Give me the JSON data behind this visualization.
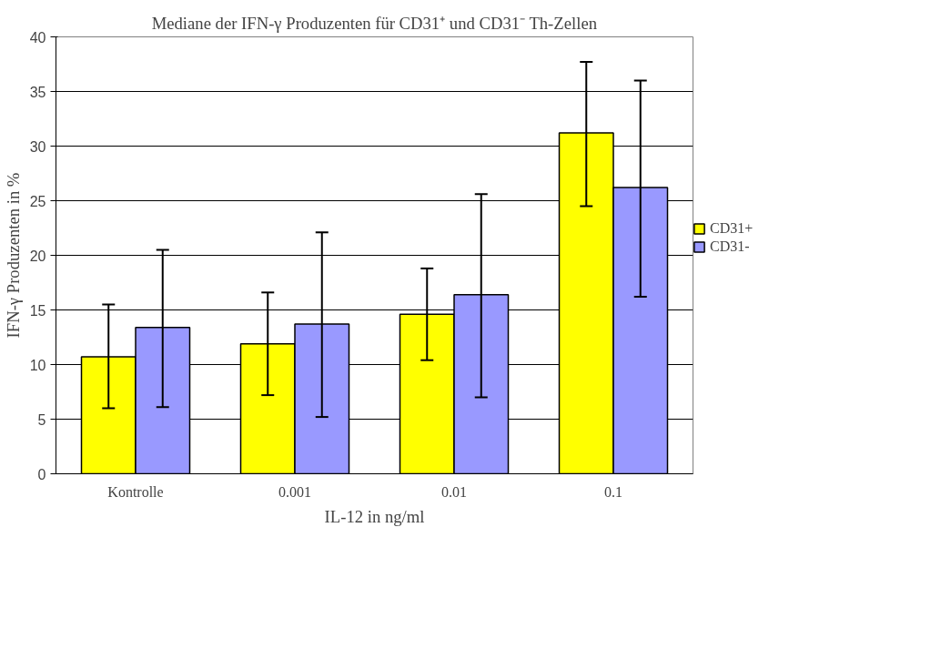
{
  "chart_data": {
    "type": "bar",
    "title": "Mediane der IFN-γ Produzenten für CD31⁺ und CD31⁻ Th-Zellen",
    "xlabel": "IL-12 in ng/ml",
    "ylabel": "IFN-γ Produzenten in %",
    "categories": [
      "Kontrolle",
      "0.001",
      "0.01",
      "0.1"
    ],
    "series": [
      {
        "name": "CD31+",
        "color": "#ffff00",
        "values": [
          10.7,
          11.9,
          14.6,
          31.2
        ],
        "errors": [
          [
            6.0,
            15.5
          ],
          [
            7.2,
            16.6
          ],
          [
            10.4,
            18.8
          ],
          [
            24.5,
            37.7
          ]
        ]
      },
      {
        "name": "CD31-",
        "color": "#9999ff",
        "values": [
          13.4,
          13.7,
          16.4,
          26.2
        ],
        "errors": [
          [
            6.1,
            20.5
          ],
          [
            5.2,
            22.1
          ],
          [
            7.0,
            25.6
          ],
          [
            16.2,
            36.0
          ]
        ]
      }
    ],
    "ylim": [
      0,
      40
    ],
    "yticks": [
      0,
      5,
      10,
      15,
      20,
      25,
      30,
      35,
      40
    ],
    "grid": "y",
    "legend": "right"
  }
}
